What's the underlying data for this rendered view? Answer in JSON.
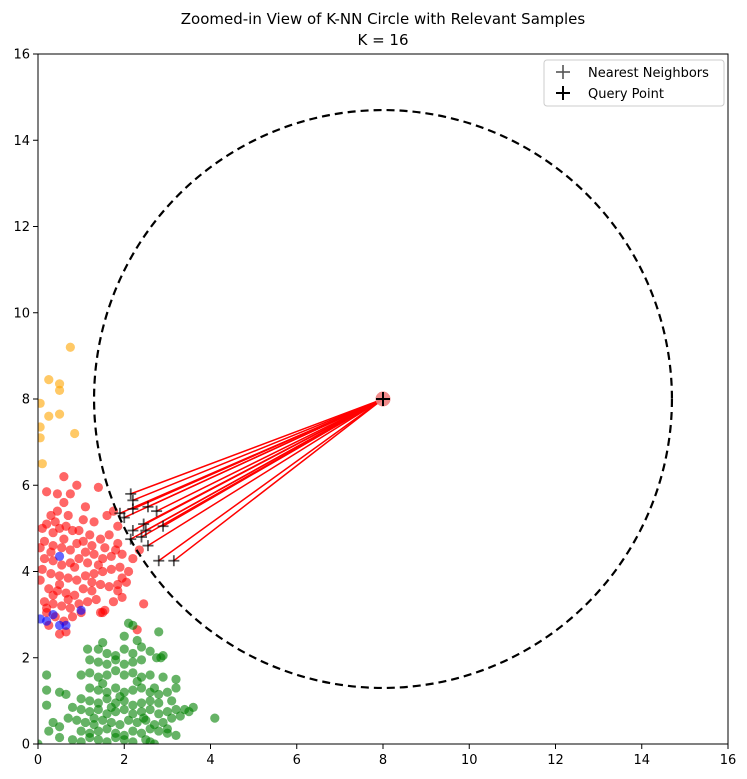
{
  "chart_data": {
    "type": "scatter",
    "title": "Zoomed-in View of K-NN Circle with Relevant Samples",
    "subtitle": "K = 16",
    "xlim": [
      0,
      16
    ],
    "ylim": [
      0,
      16
    ],
    "x_ticks": [
      "0",
      "2",
      "4",
      "6",
      "8",
      "10",
      "12",
      "14",
      "16"
    ],
    "y_ticks": [
      "0",
      "2",
      "4",
      "6",
      "8",
      "10",
      "12",
      "14",
      "16"
    ],
    "grid": false,
    "legend_placement": "top-right",
    "legend": [
      {
        "label": "Nearest Neighbors",
        "marker": "plus",
        "color": "#555555"
      },
      {
        "label": "Query Point",
        "marker": "plus",
        "color": "#000000"
      }
    ],
    "query_point": {
      "x": 8.0,
      "y": 8.0,
      "color": "#f08080"
    },
    "knn_circle": {
      "center": [
        8.0,
        8.0
      ],
      "radius": 6.7,
      "style": "dashed",
      "color": "#000000"
    },
    "neighbor_line_color": "#ff0000",
    "nearest_neighbors": [
      {
        "x": 2.15,
        "y": 5.8
      },
      {
        "x": 2.2,
        "y": 5.65
      },
      {
        "x": 1.9,
        "y": 5.35
      },
      {
        "x": 2.0,
        "y": 5.25
      },
      {
        "x": 2.2,
        "y": 5.45
      },
      {
        "x": 2.55,
        "y": 5.5
      },
      {
        "x": 2.75,
        "y": 5.4
      },
      {
        "x": 2.45,
        "y": 5.1
      },
      {
        "x": 2.2,
        "y": 4.95
      },
      {
        "x": 2.5,
        "y": 4.95
      },
      {
        "x": 2.9,
        "y": 5.05
      },
      {
        "x": 2.15,
        "y": 4.75
      },
      {
        "x": 2.4,
        "y": 4.8
      },
      {
        "x": 2.55,
        "y": 4.6
      },
      {
        "x": 2.8,
        "y": 4.25
      },
      {
        "x": 3.15,
        "y": 4.25
      }
    ],
    "classes": [
      {
        "color": "#ff0000",
        "points": [
          [
            0.1,
            5.0
          ],
          [
            0.2,
            5.1
          ],
          [
            0.35,
            4.9
          ],
          [
            0.5,
            5.0
          ],
          [
            0.65,
            5.05
          ],
          [
            0.8,
            4.95
          ],
          [
            0.3,
            5.3
          ],
          [
            0.45,
            5.4
          ],
          [
            0.6,
            5.6
          ],
          [
            0.2,
            5.85
          ],
          [
            0.45,
            5.8
          ],
          [
            0.75,
            5.8
          ],
          [
            0.6,
            6.2
          ],
          [
            0.9,
            6.0
          ],
          [
            1.1,
            5.5
          ],
          [
            1.4,
            5.95
          ],
          [
            1.05,
            5.2
          ],
          [
            1.3,
            5.15
          ],
          [
            1.6,
            5.3
          ],
          [
            1.75,
            5.4
          ],
          [
            1.85,
            5.05
          ],
          [
            0.15,
            4.7
          ],
          [
            0.35,
            4.6
          ],
          [
            0.55,
            4.55
          ],
          [
            0.75,
            4.5
          ],
          [
            0.9,
            4.65
          ],
          [
            1.05,
            4.7
          ],
          [
            1.25,
            4.6
          ],
          [
            1.45,
            4.75
          ],
          [
            1.65,
            4.85
          ],
          [
            1.85,
            4.65
          ],
          [
            1.95,
            4.4
          ],
          [
            1.7,
            4.35
          ],
          [
            1.5,
            4.3
          ],
          [
            1.3,
            4.4
          ],
          [
            1.1,
            4.45
          ],
          [
            0.95,
            4.3
          ],
          [
            0.75,
            4.2
          ],
          [
            0.55,
            4.15
          ],
          [
            0.35,
            4.25
          ],
          [
            0.15,
            4.3
          ],
          [
            0.1,
            4.05
          ],
          [
            0.3,
            3.95
          ],
          [
            0.5,
            3.9
          ],
          [
            0.7,
            3.85
          ],
          [
            0.9,
            3.8
          ],
          [
            1.1,
            3.9
          ],
          [
            1.3,
            3.95
          ],
          [
            1.5,
            4.0
          ],
          [
            1.7,
            4.05
          ],
          [
            1.9,
            4.1
          ],
          [
            2.1,
            4.0
          ],
          [
            2.2,
            4.3
          ],
          [
            2.35,
            4.5
          ],
          [
            0.05,
            3.8
          ],
          [
            0.25,
            3.6
          ],
          [
            0.45,
            3.55
          ],
          [
            0.65,
            3.5
          ],
          [
            0.85,
            3.45
          ],
          [
            1.05,
            3.6
          ],
          [
            1.25,
            3.55
          ],
          [
            1.45,
            3.7
          ],
          [
            1.65,
            3.65
          ],
          [
            1.85,
            3.7
          ],
          [
            2.05,
            3.75
          ],
          [
            0.15,
            3.3
          ],
          [
            0.35,
            3.25
          ],
          [
            0.55,
            3.2
          ],
          [
            0.75,
            3.15
          ],
          [
            0.95,
            3.25
          ],
          [
            1.15,
            3.3
          ],
          [
            1.35,
            3.35
          ],
          [
            1.55,
            3.1
          ],
          [
            1.75,
            3.3
          ],
          [
            1.95,
            3.4
          ],
          [
            0.2,
            3.05
          ],
          [
            0.4,
            2.95
          ],
          [
            0.6,
            2.85
          ],
          [
            0.8,
            2.95
          ],
          [
            0.25,
            2.75
          ],
          [
            0.5,
            2.55
          ],
          [
            0.65,
            2.6
          ],
          [
            1.5,
            3.05
          ],
          [
            1.45,
            3.05
          ],
          [
            2.45,
            3.25
          ],
          [
            2.3,
            2.65
          ],
          [
            0.2,
            3.15
          ],
          [
            0.95,
            4.95
          ],
          [
            1.2,
            4.85
          ],
          [
            0.7,
            5.3
          ],
          [
            0.4,
            5.15
          ],
          [
            1.55,
            4.55
          ],
          [
            1.8,
            4.5
          ],
          [
            0.6,
            4.75
          ],
          [
            0.85,
            4.1
          ],
          [
            1.15,
            4.2
          ],
          [
            1.4,
            4.15
          ],
          [
            0.3,
            4.45
          ],
          [
            0.05,
            4.55
          ],
          [
            1.95,
            3.85
          ],
          [
            0.5,
            3.7
          ],
          [
            1.25,
            3.75
          ],
          [
            0.7,
            3.35
          ],
          [
            1.85,
            3.55
          ],
          [
            1.0,
            3.05
          ],
          [
            0.35,
            3.45
          ]
        ]
      },
      {
        "color": "#008000",
        "points": [
          [
            1.4,
            2.2
          ],
          [
            1.5,
            2.35
          ],
          [
            1.6,
            2.1
          ],
          [
            1.8,
            2.05
          ],
          [
            2.0,
            2.2
          ],
          [
            2.2,
            2.1
          ],
          [
            2.4,
            2.25
          ],
          [
            2.6,
            2.15
          ],
          [
            2.1,
            2.8
          ],
          [
            2.2,
            2.75
          ],
          [
            2.8,
            2.6
          ],
          [
            1.2,
            1.95
          ],
          [
            1.4,
            1.9
          ],
          [
            1.6,
            1.85
          ],
          [
            1.8,
            1.95
          ],
          [
            2.0,
            1.85
          ],
          [
            2.2,
            1.9
          ],
          [
            2.4,
            1.95
          ],
          [
            2.75,
            2.0
          ],
          [
            2.85,
            2.0
          ],
          [
            1.0,
            1.6
          ],
          [
            1.2,
            1.65
          ],
          [
            1.4,
            1.55
          ],
          [
            1.6,
            1.6
          ],
          [
            1.8,
            1.7
          ],
          [
            2.0,
            1.6
          ],
          [
            2.2,
            1.65
          ],
          [
            2.4,
            1.55
          ],
          [
            2.6,
            1.6
          ],
          [
            2.9,
            1.55
          ],
          [
            3.2,
            1.5
          ],
          [
            0.2,
            1.6
          ],
          [
            1.2,
            1.3
          ],
          [
            1.4,
            1.25
          ],
          [
            1.6,
            1.2
          ],
          [
            1.8,
            1.3
          ],
          [
            2.0,
            1.2
          ],
          [
            2.2,
            1.25
          ],
          [
            2.4,
            1.3
          ],
          [
            2.6,
            1.2
          ],
          [
            2.8,
            1.15
          ],
          [
            3.0,
            1.2
          ],
          [
            3.2,
            1.3
          ],
          [
            0.2,
            1.25
          ],
          [
            0.5,
            1.2
          ],
          [
            0.65,
            1.15
          ],
          [
            1.0,
            1.05
          ],
          [
            1.2,
            1.0
          ],
          [
            1.4,
            0.95
          ],
          [
            1.6,
            1.05
          ],
          [
            1.8,
            0.95
          ],
          [
            2.0,
            1.0
          ],
          [
            2.2,
            0.9
          ],
          [
            2.4,
            0.95
          ],
          [
            2.6,
            1.0
          ],
          [
            2.8,
            0.95
          ],
          [
            3.1,
            1.0
          ],
          [
            0.2,
            0.9
          ],
          [
            0.8,
            0.85
          ],
          [
            1.0,
            0.8
          ],
          [
            1.2,
            0.75
          ],
          [
            1.4,
            0.8
          ],
          [
            1.6,
            0.7
          ],
          [
            1.8,
            0.75
          ],
          [
            2.0,
            0.8
          ],
          [
            2.2,
            0.7
          ],
          [
            2.4,
            0.75
          ],
          [
            2.6,
            0.8
          ],
          [
            2.8,
            0.7
          ],
          [
            3.0,
            0.75
          ],
          [
            3.2,
            0.8
          ],
          [
            3.4,
            0.8
          ],
          [
            3.6,
            0.85
          ],
          [
            4.1,
            0.6
          ],
          [
            0.7,
            0.6
          ],
          [
            0.9,
            0.55
          ],
          [
            1.1,
            0.5
          ],
          [
            1.3,
            0.6
          ],
          [
            1.5,
            0.55
          ],
          [
            1.7,
            0.5
          ],
          [
            1.9,
            0.45
          ],
          [
            2.1,
            0.55
          ],
          [
            2.3,
            0.5
          ],
          [
            2.5,
            0.55
          ],
          [
            2.7,
            0.45
          ],
          [
            2.9,
            0.5
          ],
          [
            3.1,
            0.6
          ],
          [
            3.3,
            0.65
          ],
          [
            0.5,
            0.4
          ],
          [
            1.0,
            0.3
          ],
          [
            1.2,
            0.25
          ],
          [
            1.4,
            0.3
          ],
          [
            1.6,
            0.35
          ],
          [
            1.8,
            0.25
          ],
          [
            2.0,
            0.2
          ],
          [
            2.2,
            0.3
          ],
          [
            2.4,
            0.25
          ],
          [
            2.6,
            0.35
          ],
          [
            2.8,
            0.3
          ],
          [
            3.0,
            0.25
          ],
          [
            3.2,
            0.2
          ],
          [
            0.5,
            0.15
          ],
          [
            0.8,
            0.1
          ],
          [
            1.0,
            0.05
          ],
          [
            1.2,
            0.15
          ],
          [
            1.4,
            0.1
          ],
          [
            1.6,
            0.05
          ],
          [
            1.8,
            0.15
          ],
          [
            2.0,
            0.1
          ],
          [
            2.2,
            0.05
          ],
          [
            2.5,
            0.1
          ],
          [
            2.7,
            0.0
          ],
          [
            2.6,
            0.05
          ],
          [
            0.0,
            0.0
          ],
          [
            0.25,
            0.3
          ],
          [
            0.35,
            0.5
          ],
          [
            3.5,
            0.75
          ],
          [
            1.5,
            1.4
          ],
          [
            2.3,
            1.45
          ],
          [
            1.9,
            1.1
          ],
          [
            2.7,
            1.3
          ],
          [
            1.3,
            0.45
          ],
          [
            2.45,
            0.6
          ],
          [
            3.0,
            0.35
          ],
          [
            1.7,
            0.85
          ],
          [
            2.9,
            2.05
          ],
          [
            1.15,
            2.2
          ],
          [
            2.0,
            2.5
          ],
          [
            2.3,
            2.4
          ]
        ]
      },
      {
        "color": "#ffa500",
        "points": [
          [
            0.75,
            9.2
          ],
          [
            0.25,
            8.45
          ],
          [
            0.5,
            8.35
          ],
          [
            0.5,
            8.2
          ],
          [
            0.05,
            7.9
          ],
          [
            0.25,
            7.6
          ],
          [
            0.5,
            7.65
          ],
          [
            0.05,
            7.35
          ],
          [
            0.05,
            7.1
          ],
          [
            0.85,
            7.2
          ],
          [
            0.1,
            6.5
          ]
        ]
      },
      {
        "color": "#0000ff",
        "points": [
          [
            0.5,
            4.35
          ],
          [
            1.0,
            3.1
          ],
          [
            0.35,
            3.0
          ],
          [
            0.05,
            2.9
          ],
          [
            0.2,
            2.85
          ],
          [
            0.5,
            2.75
          ],
          [
            0.65,
            2.75
          ]
        ]
      }
    ]
  }
}
